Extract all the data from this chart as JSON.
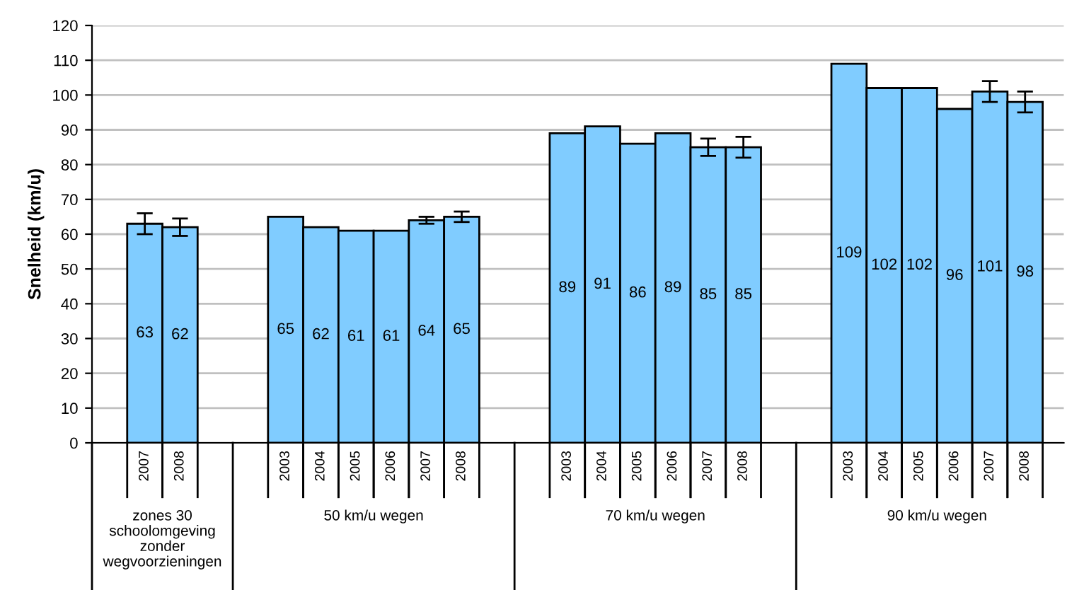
{
  "chart_data": {
    "type": "bar",
    "ylabel": "Snelheid (km/u)",
    "categories": [
      null,
      "2007",
      "2008",
      null,
      null,
      "2003",
      "2004",
      "2005",
      "2006",
      "2007",
      "2008",
      null,
      null,
      "2003",
      "2004",
      "2005",
      "2006",
      "2007",
      "2008",
      null,
      null,
      "2003",
      "2004",
      "2005",
      "2006",
      "2007",
      "2008"
    ],
    "values": [
      null,
      63,
      62,
      null,
      null,
      65,
      62,
      61,
      61,
      64,
      65,
      null,
      null,
      89,
      91,
      86,
      89,
      85,
      85,
      null,
      null,
      109,
      102,
      102,
      96,
      101,
      98
    ],
    "errors": [
      null,
      3,
      2.5,
      null,
      null,
      null,
      null,
      null,
      null,
      1,
      1.5,
      null,
      null,
      null,
      null,
      null,
      null,
      2.5,
      3,
      null,
      null,
      null,
      null,
      null,
      null,
      3,
      3
    ],
    "color": "#80ccff",
    "data_labels": true,
    "ylim": [
      0,
      120
    ],
    "yticks": [
      0,
      10,
      20,
      30,
      40,
      50,
      60,
      70,
      80,
      90,
      100,
      110,
      120
    ],
    "grid": "y",
    "annotations": [
      "zones 30\nschoolomgeving\nzonder\nwegvoorzieningen",
      "50 km/u wegen",
      "70 km/u wegen",
      "90 km/u wegen"
    ]
  }
}
